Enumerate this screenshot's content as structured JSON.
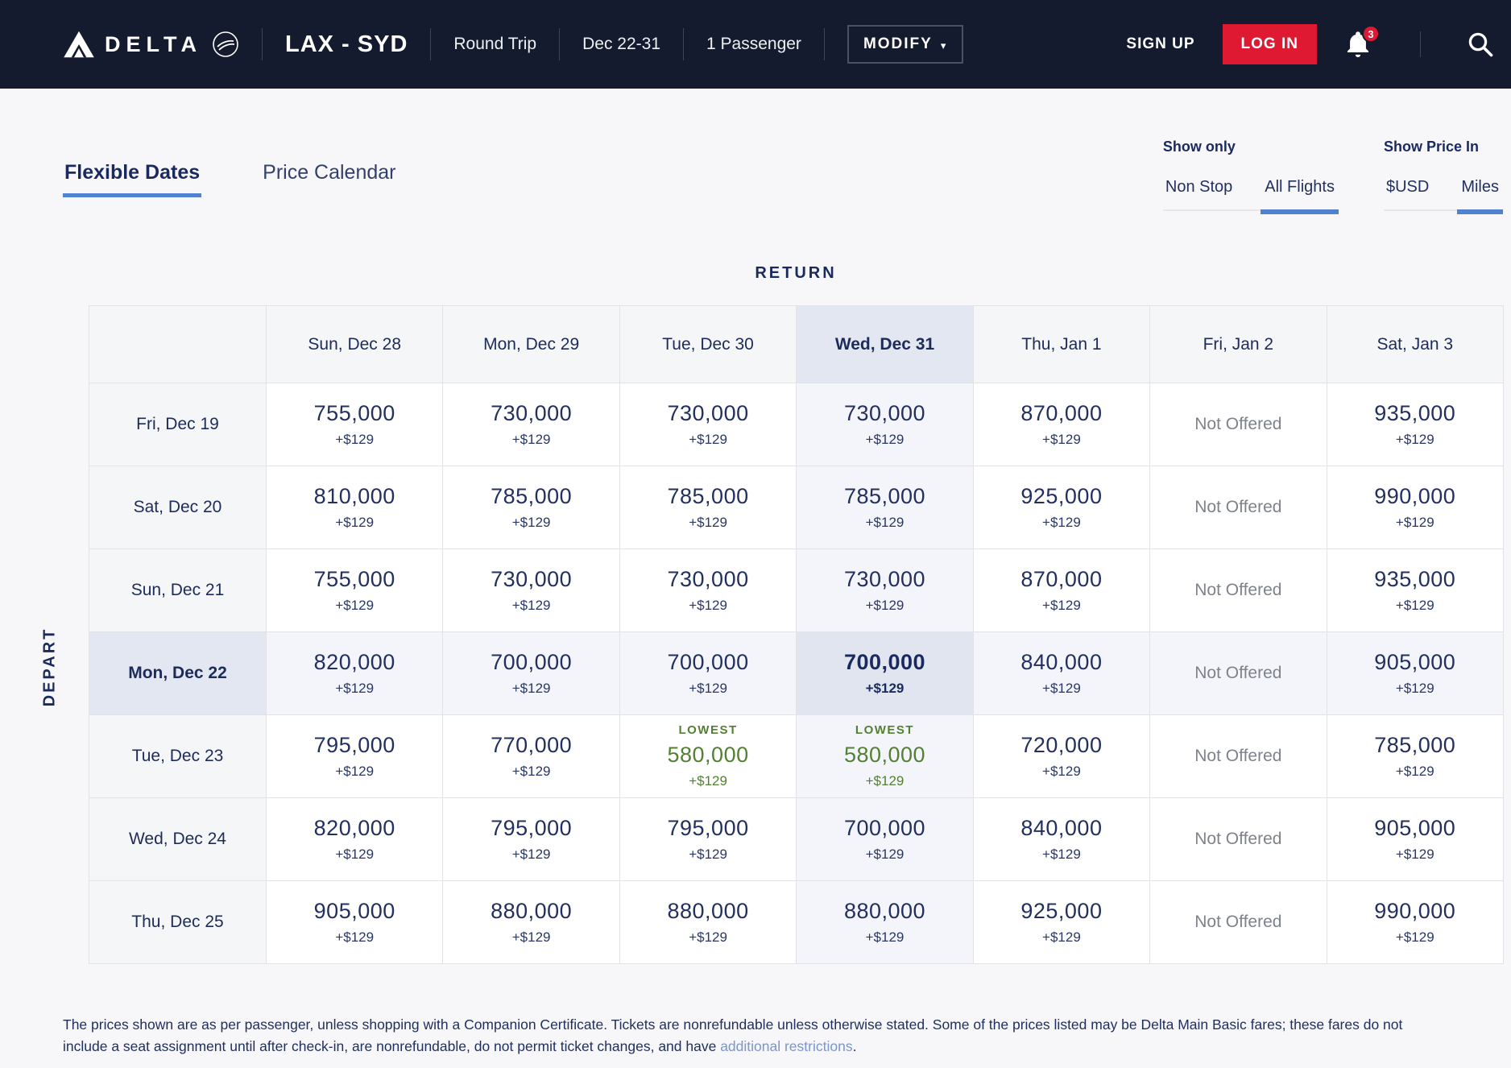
{
  "navbar": {
    "brand": "DELTA",
    "route": "LAX - SYD",
    "trip_type": "Round Trip",
    "dates": "Dec 22-31",
    "passengers": "1 Passenger",
    "modify_label": "MODIFY",
    "sign_up_label": "SIGN UP",
    "log_in_label": "LOG IN",
    "notification_count": "3"
  },
  "tabs": {
    "flexible_dates": "Flexible Dates",
    "price_calendar": "Price Calendar",
    "active": "Flexible Dates"
  },
  "filters": {
    "show_only": {
      "label": "Show only",
      "options": [
        "Non Stop",
        "All Flights"
      ],
      "selected": "All Flights"
    },
    "show_price_in": {
      "label": "Show Price In",
      "options": [
        "$USD",
        "Miles"
      ],
      "selected": "Miles"
    }
  },
  "matrix": {
    "return_label": "RETURN",
    "depart_label": "DEPART",
    "columns": [
      "Sun, Dec 28",
      "Mon, Dec 29",
      "Tue, Dec 30",
      "Wed, Dec 31",
      "Thu, Jan 1",
      "Fri, Jan 2",
      "Sat, Jan 3"
    ],
    "highlighted_column_index": 3,
    "highlighted_row_index": 3,
    "rows": [
      {
        "date": "Fri, Dec 19",
        "cells": [
          {
            "type": "fare",
            "miles": "755,000",
            "cash": "+$129"
          },
          {
            "type": "fare",
            "miles": "730,000",
            "cash": "+$129"
          },
          {
            "type": "fare",
            "miles": "730,000",
            "cash": "+$129"
          },
          {
            "type": "fare",
            "miles": "730,000",
            "cash": "+$129"
          },
          {
            "type": "fare",
            "miles": "870,000",
            "cash": "+$129"
          },
          {
            "type": "none",
            "label": "Not Offered"
          },
          {
            "type": "fare",
            "miles": "935,000",
            "cash": "+$129"
          }
        ]
      },
      {
        "date": "Sat, Dec 20",
        "cells": [
          {
            "type": "fare",
            "miles": "810,000",
            "cash": "+$129"
          },
          {
            "type": "fare",
            "miles": "785,000",
            "cash": "+$129"
          },
          {
            "type": "fare",
            "miles": "785,000",
            "cash": "+$129"
          },
          {
            "type": "fare",
            "miles": "785,000",
            "cash": "+$129"
          },
          {
            "type": "fare",
            "miles": "925,000",
            "cash": "+$129"
          },
          {
            "type": "none",
            "label": "Not Offered"
          },
          {
            "type": "fare",
            "miles": "990,000",
            "cash": "+$129"
          }
        ]
      },
      {
        "date": "Sun, Dec 21",
        "cells": [
          {
            "type": "fare",
            "miles": "755,000",
            "cash": "+$129"
          },
          {
            "type": "fare",
            "miles": "730,000",
            "cash": "+$129"
          },
          {
            "type": "fare",
            "miles": "730,000",
            "cash": "+$129"
          },
          {
            "type": "fare",
            "miles": "730,000",
            "cash": "+$129"
          },
          {
            "type": "fare",
            "miles": "870,000",
            "cash": "+$129"
          },
          {
            "type": "none",
            "label": "Not Offered"
          },
          {
            "type": "fare",
            "miles": "935,000",
            "cash": "+$129"
          }
        ]
      },
      {
        "date": "Mon, Dec 22",
        "cells": [
          {
            "type": "fare",
            "miles": "820,000",
            "cash": "+$129"
          },
          {
            "type": "fare",
            "miles": "700,000",
            "cash": "+$129"
          },
          {
            "type": "fare",
            "miles": "700,000",
            "cash": "+$129"
          },
          {
            "type": "fare",
            "miles": "700,000",
            "cash": "+$129"
          },
          {
            "type": "fare",
            "miles": "840,000",
            "cash": "+$129"
          },
          {
            "type": "none",
            "label": "Not Offered"
          },
          {
            "type": "fare",
            "miles": "905,000",
            "cash": "+$129"
          }
        ]
      },
      {
        "date": "Tue, Dec 23",
        "cells": [
          {
            "type": "fare",
            "miles": "795,000",
            "cash": "+$129"
          },
          {
            "type": "fare",
            "miles": "770,000",
            "cash": "+$129"
          },
          {
            "type": "lowest",
            "tag": "LOWEST",
            "miles": "580,000",
            "cash": "+$129"
          },
          {
            "type": "lowest",
            "tag": "LOWEST",
            "miles": "580,000",
            "cash": "+$129"
          },
          {
            "type": "fare",
            "miles": "720,000",
            "cash": "+$129"
          },
          {
            "type": "none",
            "label": "Not Offered"
          },
          {
            "type": "fare",
            "miles": "785,000",
            "cash": "+$129"
          }
        ]
      },
      {
        "date": "Wed, Dec 24",
        "cells": [
          {
            "type": "fare",
            "miles": "820,000",
            "cash": "+$129"
          },
          {
            "type": "fare",
            "miles": "795,000",
            "cash": "+$129"
          },
          {
            "type": "fare",
            "miles": "795,000",
            "cash": "+$129"
          },
          {
            "type": "fare",
            "miles": "700,000",
            "cash": "+$129"
          },
          {
            "type": "fare",
            "miles": "840,000",
            "cash": "+$129"
          },
          {
            "type": "none",
            "label": "Not Offered"
          },
          {
            "type": "fare",
            "miles": "905,000",
            "cash": "+$129"
          }
        ]
      },
      {
        "date": "Thu, Dec 25",
        "cells": [
          {
            "type": "fare",
            "miles": "905,000",
            "cash": "+$129"
          },
          {
            "type": "fare",
            "miles": "880,000",
            "cash": "+$129"
          },
          {
            "type": "fare",
            "miles": "880,000",
            "cash": "+$129"
          },
          {
            "type": "fare",
            "miles": "880,000",
            "cash": "+$129"
          },
          {
            "type": "fare",
            "miles": "925,000",
            "cash": "+$129"
          },
          {
            "type": "none",
            "label": "Not Offered"
          },
          {
            "type": "fare",
            "miles": "990,000",
            "cash": "+$129"
          }
        ]
      }
    ]
  },
  "footer": {
    "text_before_link": "The prices shown are as per passenger, unless shopping with a Companion Certificate. Tickets are nonrefundable unless otherwise stated. Some of the prices listed may be Delta Main Basic fares; these fares do not include a seat assignment until after check-in, are nonrefundable, do not permit ticket changes, and have ",
    "link_text": "additional restrictions",
    "text_after_link": "."
  },
  "colors": {
    "navbar_bg": "#141b2e",
    "navy_text": "#1b2a5e",
    "price_text": "#23305f",
    "delta_red": "#e01933",
    "lowest_green": "#538033",
    "link_blue": "#7b96cc",
    "active_underline_blue": "#5181d1",
    "highlight_header_bg": "#e3e7f1",
    "highlight_tint_bg": "#f3f5fa",
    "highlight_cross_bg": "#e0e5f0",
    "not_offered_gray": "#7e828b",
    "page_bg": "#f7f7f9"
  }
}
